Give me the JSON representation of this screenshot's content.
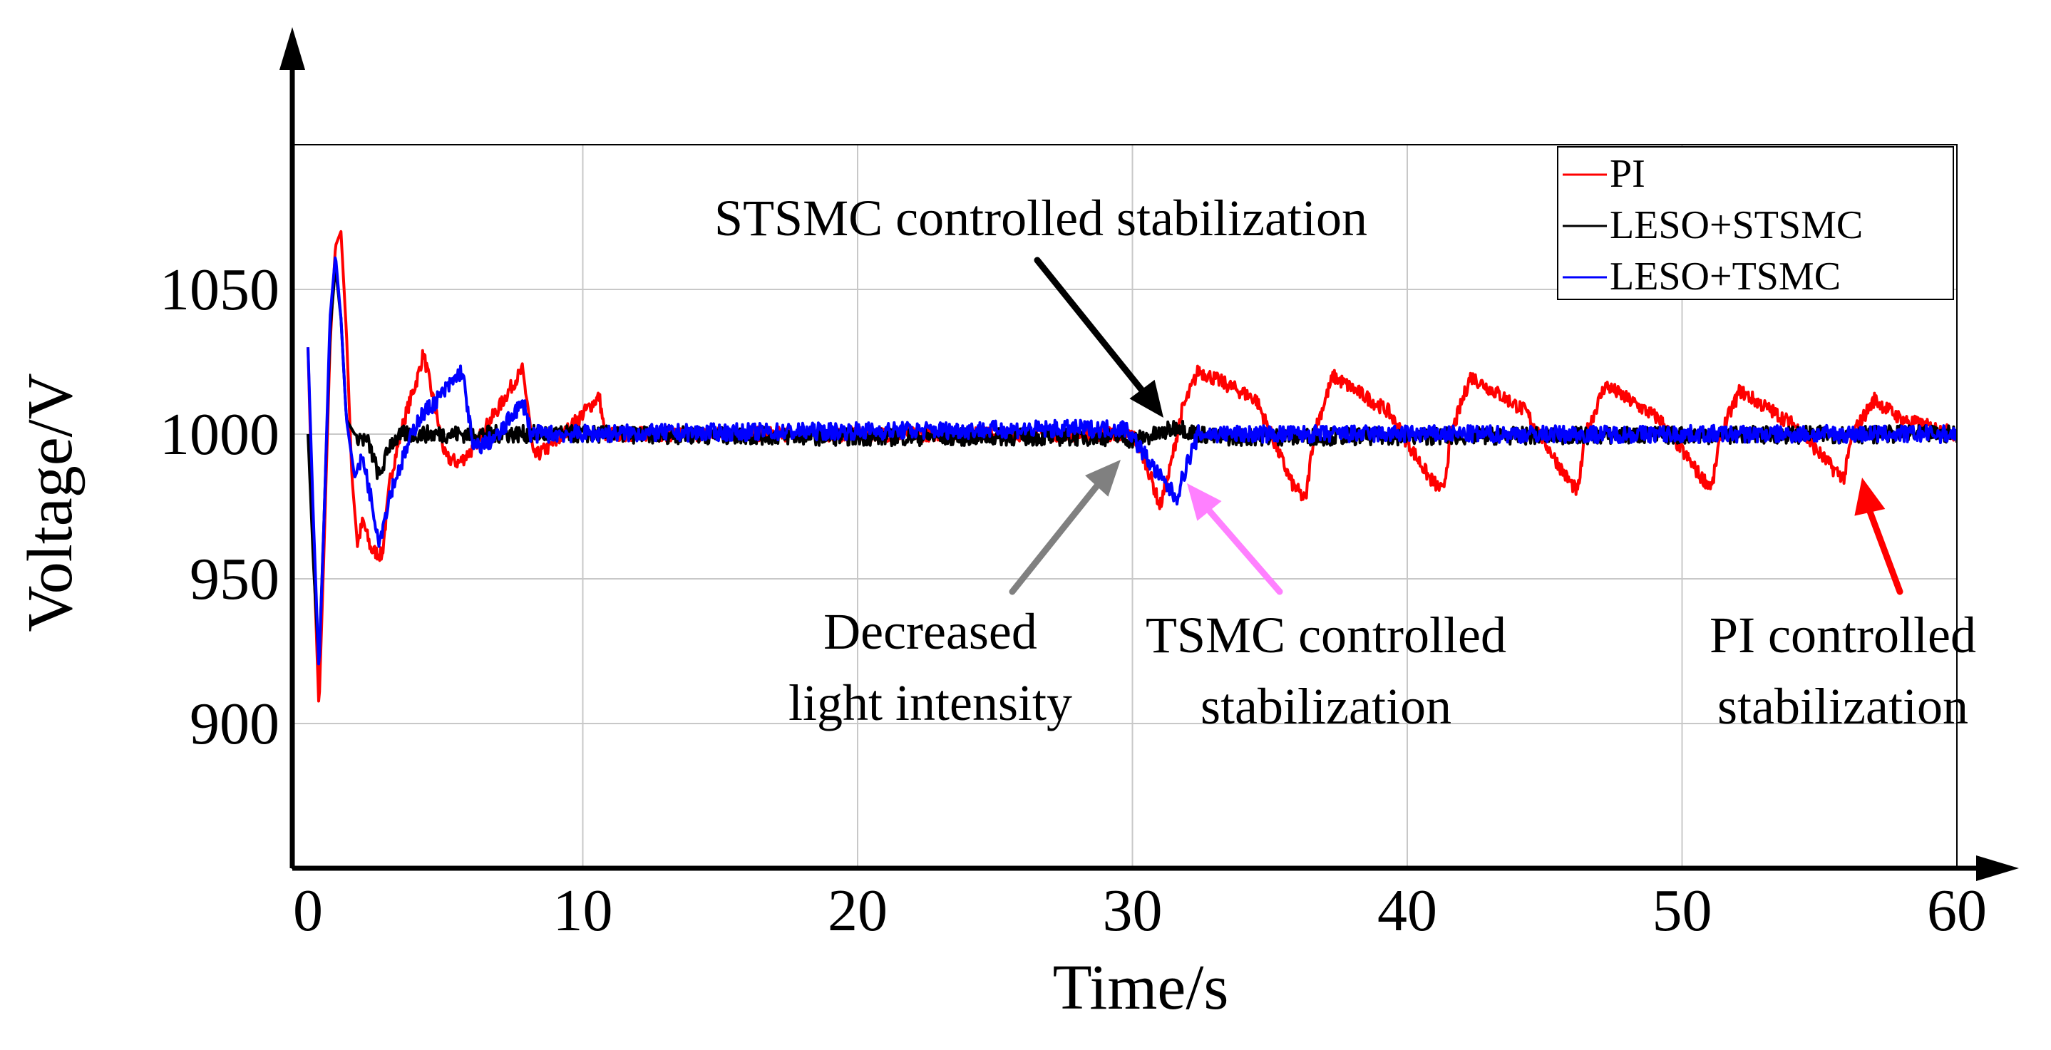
{
  "chart_data": {
    "type": "line",
    "title": "",
    "xlabel": "Time/s",
    "ylabel": "Voltage/V",
    "xlim": [
      0,
      60
    ],
    "ylim": [
      850,
      1100
    ],
    "x_ticks": [
      0,
      10,
      20,
      30,
      40,
      50,
      60
    ],
    "x_tick_labels": [
      "0",
      "10",
      "20",
      "30",
      "40",
      "50",
      "60"
    ],
    "y_ticks": [
      900,
      950,
      1000,
      1050
    ],
    "y_tick_labels": [
      "900",
      "950",
      "1000",
      "1050"
    ],
    "grid": true,
    "legend_position": "top-right",
    "series": [
      {
        "name": "PI",
        "color": "#ff0000",
        "noise": 2.5,
        "points": [
          [
            0,
            1030
          ],
          [
            0.2,
            960
          ],
          [
            0.4,
            905
          ],
          [
            0.6,
            965
          ],
          [
            0.8,
            1030
          ],
          [
            1.0,
            1065
          ],
          [
            1.2,
            1070
          ],
          [
            1.4,
            1035
          ],
          [
            1.6,
            985
          ],
          [
            1.8,
            962
          ],
          [
            2.0,
            970
          ],
          [
            2.3,
            960
          ],
          [
            2.7,
            958
          ],
          [
            3.0,
            985
          ],
          [
            3.5,
            1005
          ],
          [
            4.0,
            1020
          ],
          [
            4.2,
            1028
          ],
          [
            5.0,
            992
          ],
          [
            5.5,
            990
          ],
          [
            6.0,
            995
          ],
          [
            6.3,
            1000
          ],
          [
            7.0,
            1010
          ],
          [
            7.5,
            1018
          ],
          [
            7.8,
            1022
          ],
          [
            8.0,
            1010
          ],
          [
            8.2,
            992
          ],
          [
            9.0,
            997
          ],
          [
            10.0,
            1007
          ],
          [
            10.6,
            1013
          ],
          [
            10.8,
            1000
          ],
          [
            30.0,
            1000
          ],
          [
            30.5,
            990
          ],
          [
            31.0,
            975
          ],
          [
            31.3,
            985
          ],
          [
            31.8,
            1008
          ],
          [
            32.4,
            1022
          ],
          [
            34.5,
            1012
          ],
          [
            35.8,
            983
          ],
          [
            36.3,
            977
          ],
          [
            36.6,
            1000
          ],
          [
            37.3,
            1020
          ],
          [
            39.3,
            1008
          ],
          [
            40.8,
            985
          ],
          [
            41.3,
            980
          ],
          [
            41.6,
            1000
          ],
          [
            42.3,
            1020
          ],
          [
            44.3,
            1008
          ],
          [
            45.8,
            985
          ],
          [
            46.2,
            980
          ],
          [
            46.5,
            1000
          ],
          [
            47.2,
            1017
          ],
          [
            49.2,
            1005
          ],
          [
            50.7,
            985
          ],
          [
            51.1,
            982
          ],
          [
            51.4,
            1000
          ],
          [
            52.1,
            1015
          ],
          [
            54.1,
            1003
          ],
          [
            55.5,
            988
          ],
          [
            55.9,
            985
          ],
          [
            56.2,
            1000
          ],
          [
            57.0,
            1012
          ],
          [
            58.0,
            1005
          ],
          [
            60.0,
            1000
          ]
        ]
      },
      {
        "name": "LESO+STSMC",
        "color": "#000000",
        "noise": 3,
        "points": [
          [
            0,
            1000
          ],
          [
            0.2,
            955
          ],
          [
            0.4,
            920
          ],
          [
            0.6,
            975
          ],
          [
            0.8,
            1035
          ],
          [
            1.0,
            1058
          ],
          [
            1.2,
            1040
          ],
          [
            1.4,
            1005
          ],
          [
            1.7,
            1000
          ],
          [
            2.2,
            997
          ],
          [
            2.6,
            985
          ],
          [
            3.0,
            997
          ],
          [
            3.5,
            1000
          ],
          [
            10.0,
            1000
          ],
          [
            20.0,
            999
          ],
          [
            29.5,
            999
          ],
          [
            30.0,
            998
          ],
          [
            31.0,
            1000
          ],
          [
            31.7,
            1003
          ],
          [
            32.0,
            1001
          ],
          [
            33.0,
            999
          ],
          [
            60.0,
            1000
          ]
        ]
      },
      {
        "name": "LESO+TSMC",
        "color": "#0000ff",
        "noise": 3,
        "points": [
          [
            0,
            1030
          ],
          [
            0.2,
            970
          ],
          [
            0.4,
            918
          ],
          [
            0.6,
            975
          ],
          [
            0.8,
            1040
          ],
          [
            1.0,
            1062
          ],
          [
            1.2,
            1040
          ],
          [
            1.4,
            1005
          ],
          [
            1.7,
            985
          ],
          [
            2.0,
            992
          ],
          [
            2.6,
            963
          ],
          [
            3.0,
            980
          ],
          [
            4.0,
            1005
          ],
          [
            5.0,
            1015
          ],
          [
            5.6,
            1022
          ],
          [
            5.8,
            1010
          ],
          [
            6.0,
            995
          ],
          [
            6.5,
            997
          ],
          [
            7.0,
            1000
          ],
          [
            7.5,
            1008
          ],
          [
            7.9,
            1010
          ],
          [
            8.1,
            1000
          ],
          [
            29.8,
            1002
          ],
          [
            30.3,
            995
          ],
          [
            31.0,
            985
          ],
          [
            31.6,
            978
          ],
          [
            32.0,
            990
          ],
          [
            32.4,
            1000
          ],
          [
            60.0,
            1000
          ]
        ]
      }
    ],
    "annotations": [
      {
        "id": "stsmc",
        "lines": [
          "STSMC controlled stabilization"
        ],
        "color": "#000000"
      },
      {
        "id": "light",
        "lines": [
          "Decreased",
          "light intensity"
        ],
        "color": "#808080"
      },
      {
        "id": "tsmc",
        "lines": [
          "TSMC controlled",
          "stabilization"
        ],
        "color": "#ff80ff"
      },
      {
        "id": "pi",
        "lines": [
          "PI controlled",
          "stabilization"
        ],
        "color": "#ff0000"
      }
    ]
  }
}
